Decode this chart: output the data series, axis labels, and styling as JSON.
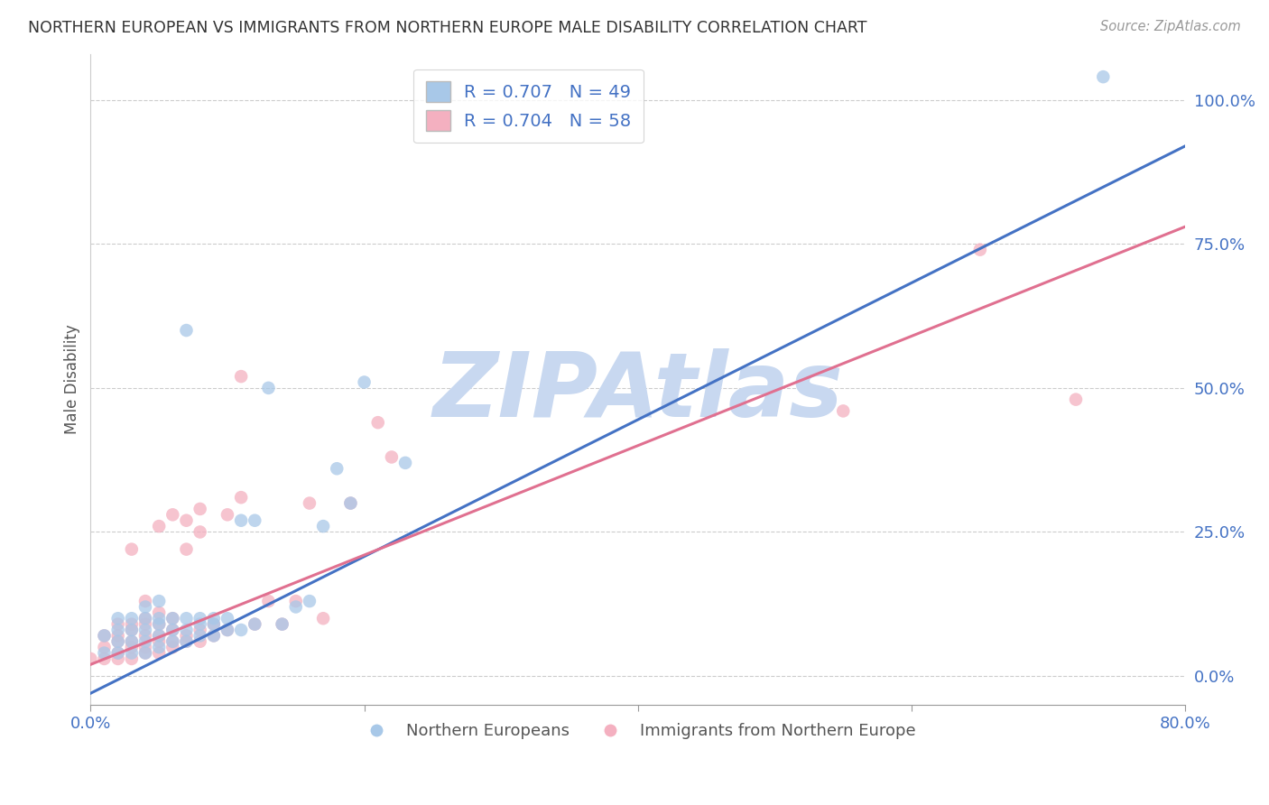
{
  "title": "NORTHERN EUROPEAN VS IMMIGRANTS FROM NORTHERN EUROPE MALE DISABILITY CORRELATION CHART",
  "source": "Source: ZipAtlas.com",
  "ylabel": "Male Disability",
  "watermark": "ZIPAtlas",
  "legend_labels": [
    "Northern Europeans",
    "Immigrants from Northern Europe"
  ],
  "blue_scatter_color": "#a8c8e8",
  "pink_scatter_color": "#f4b0c0",
  "blue_line_color": "#4472c4",
  "pink_line_color": "#e07090",
  "title_color": "#333333",
  "axis_color": "#4472c4",
  "grid_color": "#cccccc",
  "watermark_color": "#c8d8f0",
  "xmin": 0.0,
  "xmax": 0.8,
  "ymin": -0.05,
  "ymax": 1.08,
  "yticks": [
    0.0,
    0.25,
    0.5,
    0.75,
    1.0
  ],
  "ytick_labels": [
    "0.0%",
    "25.0%",
    "50.0%",
    "75.0%",
    "100.0%"
  ],
  "xticks": [
    0.0,
    0.2,
    0.4,
    0.6,
    0.8
  ],
  "xtick_labels": [
    "0.0%",
    "",
    "",
    "",
    "80.0%"
  ],
  "blue_R": 0.707,
  "pink_R": 0.704,
  "blue_N": 49,
  "pink_N": 58,
  "blue_line_x0": 0.0,
  "blue_line_y0": -0.03,
  "blue_line_x1": 0.8,
  "blue_line_y1": 0.92,
  "pink_line_x0": 0.0,
  "pink_line_y0": 0.02,
  "pink_line_x1": 0.8,
  "pink_line_y1": 0.78,
  "blue_scatter_x": [
    0.01,
    0.01,
    0.02,
    0.02,
    0.02,
    0.02,
    0.03,
    0.03,
    0.03,
    0.03,
    0.04,
    0.04,
    0.04,
    0.04,
    0.04,
    0.05,
    0.05,
    0.05,
    0.05,
    0.05,
    0.06,
    0.06,
    0.06,
    0.07,
    0.07,
    0.07,
    0.07,
    0.08,
    0.08,
    0.08,
    0.09,
    0.09,
    0.09,
    0.1,
    0.1,
    0.11,
    0.11,
    0.12,
    0.12,
    0.13,
    0.14,
    0.15,
    0.16,
    0.17,
    0.18,
    0.19,
    0.2,
    0.23,
    0.74
  ],
  "blue_scatter_y": [
    0.04,
    0.07,
    0.04,
    0.06,
    0.08,
    0.1,
    0.04,
    0.06,
    0.08,
    0.1,
    0.04,
    0.06,
    0.08,
    0.1,
    0.12,
    0.05,
    0.07,
    0.09,
    0.1,
    0.13,
    0.06,
    0.08,
    0.1,
    0.06,
    0.08,
    0.1,
    0.6,
    0.07,
    0.09,
    0.1,
    0.07,
    0.09,
    0.1,
    0.08,
    0.1,
    0.08,
    0.27,
    0.09,
    0.27,
    0.5,
    0.09,
    0.12,
    0.13,
    0.26,
    0.36,
    0.3,
    0.51,
    0.37,
    1.04
  ],
  "pink_scatter_x": [
    0.0,
    0.01,
    0.01,
    0.01,
    0.02,
    0.02,
    0.02,
    0.02,
    0.02,
    0.03,
    0.03,
    0.03,
    0.03,
    0.03,
    0.03,
    0.04,
    0.04,
    0.04,
    0.04,
    0.04,
    0.04,
    0.05,
    0.05,
    0.05,
    0.05,
    0.05,
    0.05,
    0.06,
    0.06,
    0.06,
    0.06,
    0.06,
    0.07,
    0.07,
    0.07,
    0.07,
    0.08,
    0.08,
    0.08,
    0.08,
    0.09,
    0.09,
    0.1,
    0.1,
    0.11,
    0.11,
    0.12,
    0.13,
    0.14,
    0.15,
    0.16,
    0.17,
    0.19,
    0.21,
    0.22,
    0.55,
    0.65,
    0.72
  ],
  "pink_scatter_y": [
    0.03,
    0.03,
    0.05,
    0.07,
    0.03,
    0.04,
    0.06,
    0.07,
    0.09,
    0.03,
    0.05,
    0.06,
    0.08,
    0.09,
    0.22,
    0.04,
    0.05,
    0.07,
    0.09,
    0.1,
    0.13,
    0.04,
    0.06,
    0.07,
    0.09,
    0.11,
    0.26,
    0.05,
    0.06,
    0.08,
    0.1,
    0.28,
    0.06,
    0.07,
    0.22,
    0.27,
    0.06,
    0.08,
    0.25,
    0.29,
    0.07,
    0.09,
    0.08,
    0.28,
    0.31,
    0.52,
    0.09,
    0.13,
    0.09,
    0.13,
    0.3,
    0.1,
    0.3,
    0.44,
    0.38,
    0.46,
    0.74,
    0.48
  ]
}
